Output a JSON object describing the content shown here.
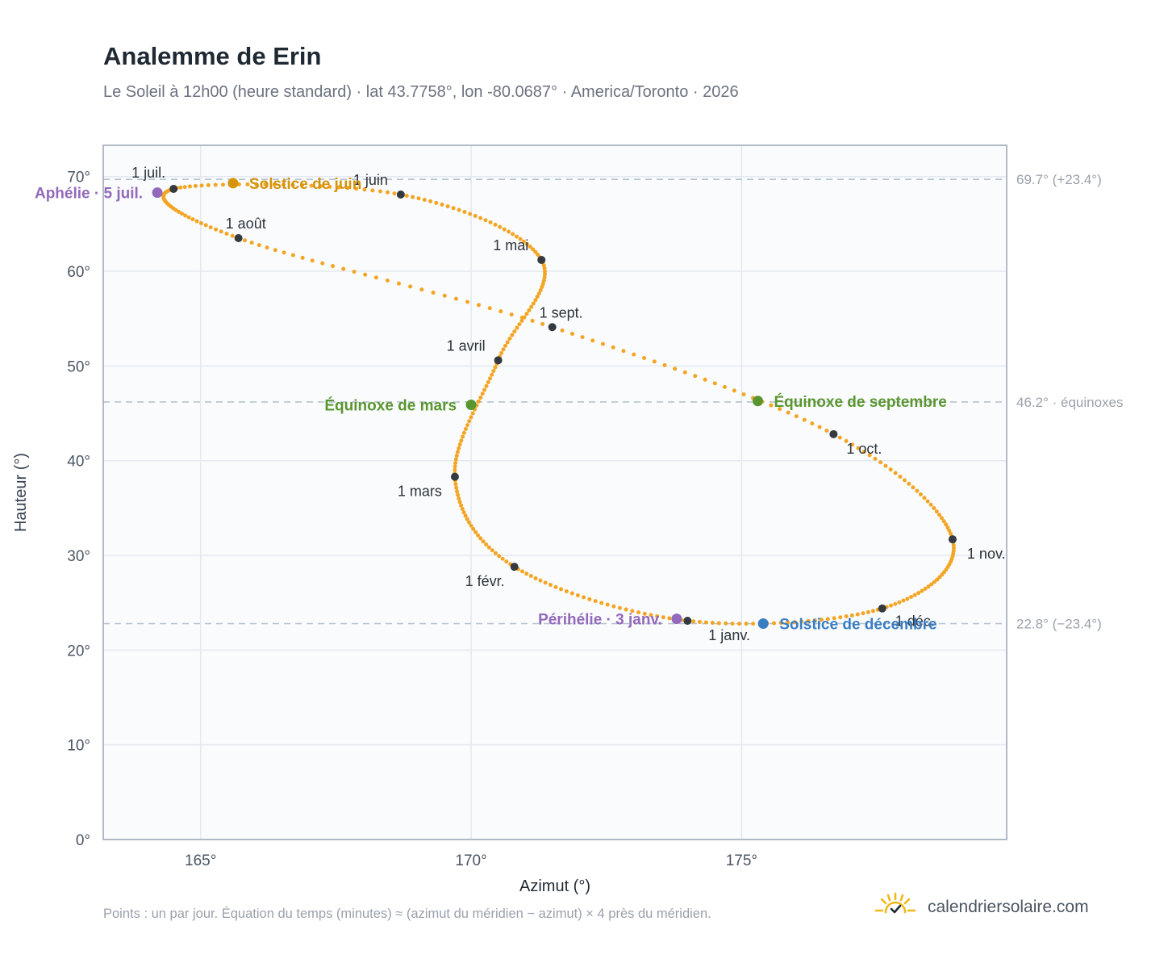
{
  "header": {
    "title": "Analemme de Erin",
    "subtitle": "Le Soleil à 12h00 (heure standard) · lat 43.7758°, lon -80.0687° · America/Toronto · 2026"
  },
  "footer": {
    "note": "Points : un par jour. Équation du temps (minutes) ≈ (azimut du méridien − azimut) × 4 près du méridien.",
    "brand": "calendriersolaire.com",
    "brand_icon": "sun-check-icon"
  },
  "colors": {
    "curve": "#f3a523",
    "month": "#343a40",
    "solstice_june": "#d4940c",
    "solstice_december": "#3a7ec2",
    "equinox": "#5a9630",
    "apsis": "#9369bb",
    "plot_bg": "#f9fbfd",
    "grid": "#e5e9ef",
    "axis": "#9aa5b4"
  },
  "chart_data": {
    "type": "scatter",
    "title": "Analemme de Erin",
    "xlabel": "Azimut (°)",
    "ylabel": "Hauteur (°)",
    "xlim": [
      163.2,
      179.9
    ],
    "ylim": [
      0,
      73.3
    ],
    "xticks": [
      {
        "value": 165,
        "label": "165°"
      },
      {
        "value": 170,
        "label": "170°"
      },
      {
        "value": 175,
        "label": "175°"
      }
    ],
    "yticks": [
      {
        "value": 0,
        "label": "0°"
      },
      {
        "value": 10,
        "label": "10°"
      },
      {
        "value": 20,
        "label": "20°"
      },
      {
        "value": 30,
        "label": "30°"
      },
      {
        "value": 40,
        "label": "40°"
      },
      {
        "value": 50,
        "label": "50°"
      },
      {
        "value": 60,
        "label": "60°"
      },
      {
        "value": 70,
        "label": "70°"
      }
    ],
    "grid": true,
    "points_per": "day",
    "reference_lines": [
      {
        "y": 69.7,
        "label": "69.7° (+23.4°)"
      },
      {
        "y": 46.2,
        "label": "46.2° · équinoxes"
      },
      {
        "y": 22.8,
        "label": "22.8° (−23.4°)"
      }
    ],
    "month_starts": [
      {
        "day": 1,
        "label": "1 janv.",
        "x": 174.0,
        "y": 23.1
      },
      {
        "day": 32,
        "label": "1 févr.",
        "x": 170.8,
        "y": 28.8
      },
      {
        "day": 60,
        "label": "1 mars",
        "x": 169.7,
        "y": 38.3
      },
      {
        "day": 91,
        "label": "1 avril",
        "x": 170.5,
        "y": 50.6
      },
      {
        "day": 121,
        "label": "1 mai",
        "x": 171.3,
        "y": 61.2
      },
      {
        "day": 152,
        "label": "1 juin",
        "x": 168.7,
        "y": 68.1
      },
      {
        "day": 182,
        "label": "1 juil.",
        "x": 164.5,
        "y": 68.7
      },
      {
        "day": 213,
        "label": "1 août",
        "x": 165.7,
        "y": 63.5
      },
      {
        "day": 244,
        "label": "1 sept.",
        "x": 171.5,
        "y": 54.1
      },
      {
        "day": 274,
        "label": "1 oct.",
        "x": 176.7,
        "y": 42.8
      },
      {
        "day": 305,
        "label": "1 nov.",
        "x": 178.9,
        "y": 31.7
      },
      {
        "day": 335,
        "label": "1 déc.",
        "x": 177.6,
        "y": 24.4
      }
    ],
    "events": [
      {
        "day": 3,
        "label": "Périhélie · 3 janv.",
        "kind": "apsis",
        "x": 173.8,
        "y": 23.3
      },
      {
        "day": 79,
        "label": "Équinoxe de mars",
        "kind": "equinox",
        "x": 170.0,
        "y": 45.9
      },
      {
        "day": 172,
        "label": "Solstice de juin",
        "kind": "solstice_june",
        "x": 165.6,
        "y": 69.3
      },
      {
        "day": 186,
        "label": "Aphélie · 5 juil.",
        "kind": "apsis",
        "x": 164.2,
        "y": 68.3
      },
      {
        "day": 266,
        "label": "Équinoxe de septembre",
        "kind": "equinox",
        "x": 175.3,
        "y": 46.3
      },
      {
        "day": 355,
        "label": "Solstice de décembre",
        "kind": "solstice_december",
        "x": 175.4,
        "y": 22.8
      }
    ]
  }
}
